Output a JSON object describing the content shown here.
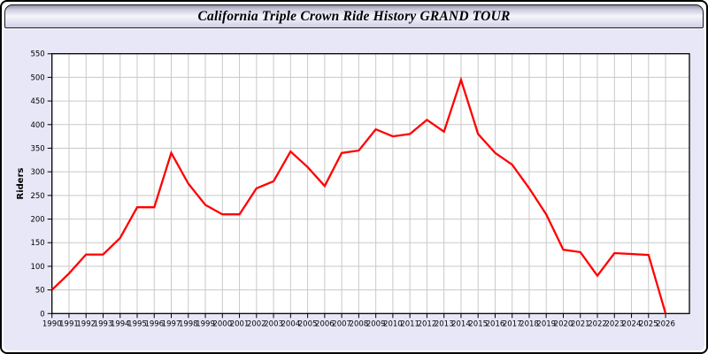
{
  "window": {
    "title": "California Triple Crown Ride History GRAND TOUR"
  },
  "chart_data": {
    "type": "line",
    "title": "California Triple Crown Ride History GRAND TOUR",
    "xlabel": "",
    "ylabel": "Riders",
    "x": [
      1990,
      1991,
      1992,
      1993,
      1994,
      1995,
      1996,
      1997,
      1998,
      1999,
      2000,
      2001,
      2002,
      2003,
      2004,
      2005,
      2006,
      2007,
      2008,
      2009,
      2010,
      2011,
      2012,
      2013,
      2014,
      2015,
      2016,
      2017,
      2018,
      2019,
      2020,
      2021,
      2022,
      2023,
      2024,
      2025,
      2026
    ],
    "series": [
      {
        "name": "Riders",
        "color": "#ff0000",
        "values": [
          50,
          85,
          125,
          125,
          160,
          225,
          225,
          340,
          275,
          230,
          210,
          210,
          265,
          280,
          343,
          310,
          270,
          340,
          345,
          390,
          375,
          380,
          410,
          385,
          495,
          380,
          340,
          315,
          265,
          210,
          135,
          130,
          80,
          128,
          126,
          124,
          0
        ]
      }
    ],
    "ylim": [
      0,
      550
    ],
    "ytick_step": 50,
    "xlim": [
      1990,
      2026
    ],
    "grid": true,
    "legend_position": "none"
  },
  "colors": {
    "line": "#ff0000",
    "panel_background": "#e7e7f8",
    "plot_background": "#ffffff",
    "grid_line": "#c9c9c9",
    "axis_line": "#000000",
    "tick_text": "#000000"
  }
}
